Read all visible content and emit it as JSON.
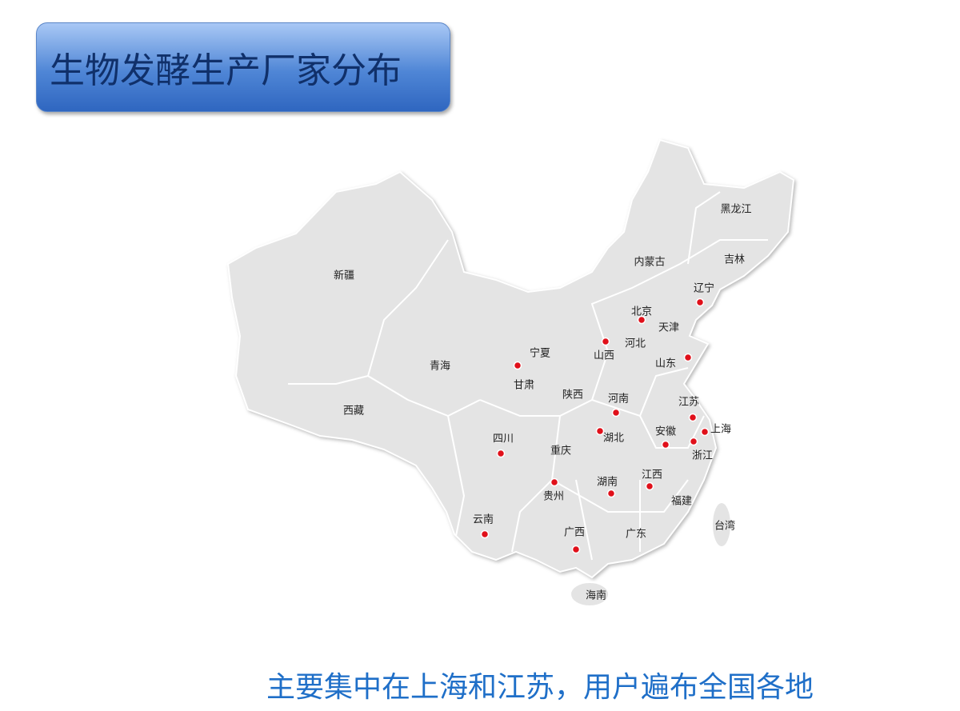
{
  "header": {
    "title": "生物发酵生产厂家分布"
  },
  "map": {
    "labels": [
      "黑龙江",
      "吉林",
      "辽宁",
      "内蒙古",
      "北京",
      "天津",
      "河北",
      "山西",
      "山东",
      "新疆",
      "青海",
      "宁夏",
      "甘肃",
      "陕西",
      "河南",
      "江苏",
      "上海",
      "安徽",
      "湖北",
      "浙江",
      "西藏",
      "四川",
      "重庆",
      "贵州",
      "湖南",
      "江西",
      "福建",
      "云南",
      "广西",
      "广东",
      "台湾",
      "海南"
    ]
  },
  "caption": "主要集中在上海和江苏，用户遍布全国各地"
}
